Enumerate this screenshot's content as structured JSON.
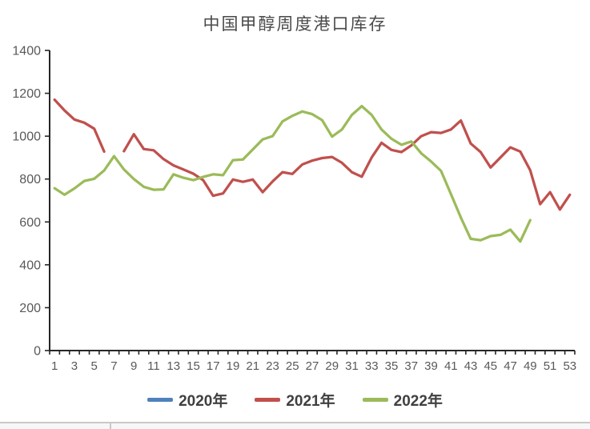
{
  "chart_data": {
    "type": "line",
    "title": "中国甲醇周度港口库存",
    "xlabel": "",
    "ylabel": "",
    "x_range": [
      1,
      53
    ],
    "x_tick_labels": [
      1,
      3,
      5,
      7,
      9,
      11,
      13,
      15,
      17,
      19,
      21,
      23,
      25,
      27,
      29,
      31,
      33,
      35,
      37,
      39,
      41,
      43,
      45,
      47,
      49,
      51,
      53
    ],
    "ylim": [
      0,
      1400
    ],
    "y_tick_labels": [
      0,
      200,
      400,
      600,
      800,
      1000,
      1200,
      1400
    ],
    "grid": false,
    "legend_position": "bottom",
    "axis_color": "#262626",
    "tick_label_color": "#595959",
    "series": [
      {
        "name": "2020年",
        "color": "#4F81BD",
        "values": []
      },
      {
        "name": "2021年",
        "color": "#C0504D",
        "values": [
          1170,
          1120,
          1078,
          1063,
          1035,
          928,
          null,
          930,
          1009,
          940,
          934,
          893,
          864,
          845,
          825,
          795,
          722,
          733,
          798,
          787,
          798,
          739,
          789,
          832,
          824,
          868,
          886,
          898,
          903,
          876,
          832,
          811,
          901,
          969,
          936,
          926,
          957,
          1000,
          1019,
          1015,
          1031,
          1073,
          966,
          926,
          854,
          901,
          948,
          928,
          841,
          683,
          739,
          658,
          727
        ]
      },
      {
        "name": "2022年",
        "color": "#9BBB59",
        "values": [
          757,
          727,
          756,
          791,
          801,
          840,
          907,
          845,
          800,
          764,
          750,
          752,
          822,
          806,
          795,
          810,
          822,
          818,
          888,
          891,
          938,
          985,
          1000,
          1069,
          1095,
          1115,
          1103,
          1075,
          998,
          1031,
          1099,
          1140,
          1099,
          1031,
          988,
          960,
          975,
          920,
          882,
          838,
          730,
          620,
          521,
          515,
          534,
          540,
          564,
          509,
          608
        ]
      }
    ]
  }
}
